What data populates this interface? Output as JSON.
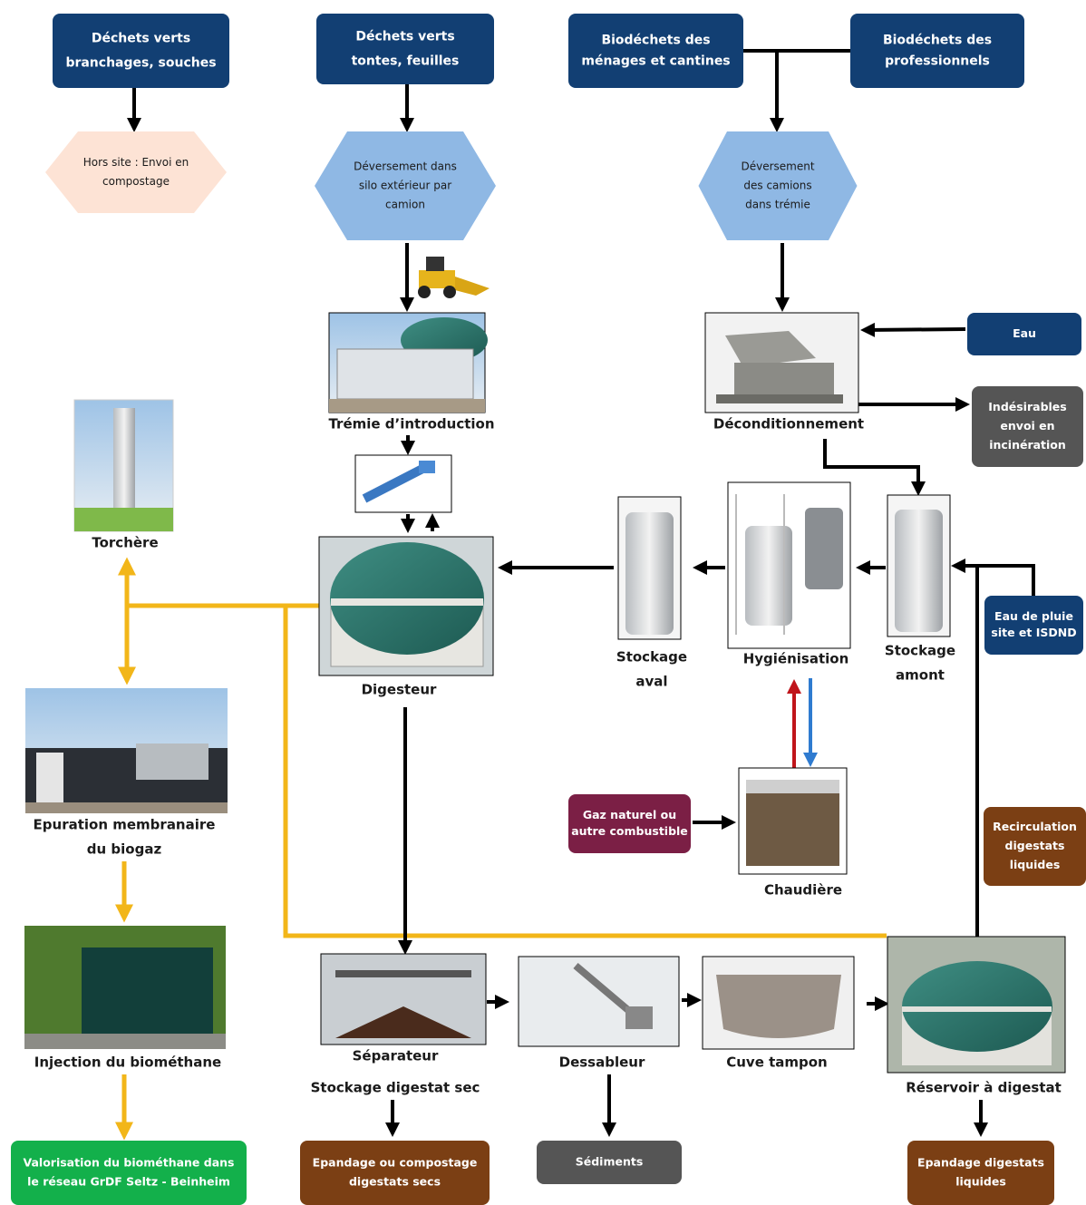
{
  "nodes": [
    {
      "lines": [
        "Déchets verts",
        "branchages, souches"
      ]
    },
    {
      "lines": [
        "Déchets verts",
        "tontes, feuilles"
      ]
    },
    {
      "lines": [
        "Biodéchets des",
        "ménages et cantines"
      ]
    },
    {
      "lines": [
        "Biodéchets des",
        "professionnels"
      ]
    },
    {
      "lines": [
        "Hors site : Envoi en",
        "compostage"
      ]
    },
    {
      "lines": [
        "Déversement dans",
        "silo extérieur par",
        "camion"
      ]
    },
    {
      "lines": [
        "Déversement",
        "des camions",
        "dans trémie"
      ]
    },
    {
      "lines": [
        "Eau"
      ]
    },
    {
      "lines": [
        "Eau de pluie",
        "site et ISDND"
      ]
    },
    {
      "lines": [
        "Gaz naturel ou",
        "autre combustible"
      ]
    },
    {
      "lines": [
        "Indésirables",
        "envoi en",
        "incinération"
      ]
    },
    {
      "lines": [
        "Recirculation",
        "digestats",
        "liquides"
      ]
    },
    {
      "lines": [
        "Valorisation du biométhane dans",
        "le réseau GrDF Seltz - Beinheim"
      ]
    },
    {
      "lines": [
        "Epandage ou compostage",
        "digestats secs"
      ]
    },
    {
      "lines": [
        "Sédiments"
      ]
    },
    {
      "lines": [
        "Epandage digestats",
        "liquides"
      ]
    },
    {
      "lines": [
        "Trémie d’introduction"
      ]
    },
    {
      "lines": [
        "Déconditionnement"
      ]
    },
    {
      "lines": [
        "Torchère"
      ]
    },
    {
      "lines": [
        "Stockage",
        "aval"
      ]
    },
    {
      "lines": [
        "Hygiénisation"
      ]
    },
    {
      "lines": [
        "Stockage",
        "amont"
      ]
    },
    {
      "lines": [
        "Digesteur"
      ]
    },
    {
      "lines": [
        "Epuration membranaire",
        "du biogaz"
      ]
    },
    {
      "lines": [
        "Chaudière"
      ]
    },
    {
      "lines": [
        "Injection du biométhane"
      ]
    },
    {
      "lines": [
        "Séparateur"
      ]
    },
    {
      "lines": [
        "Stockage digestat sec"
      ]
    },
    {
      "lines": [
        "Dessableur"
      ]
    },
    {
      "lines": [
        "Cuve tampon"
      ]
    },
    {
      "lines": [
        "Réservoir à digestat"
      ]
    }
  ]
}
